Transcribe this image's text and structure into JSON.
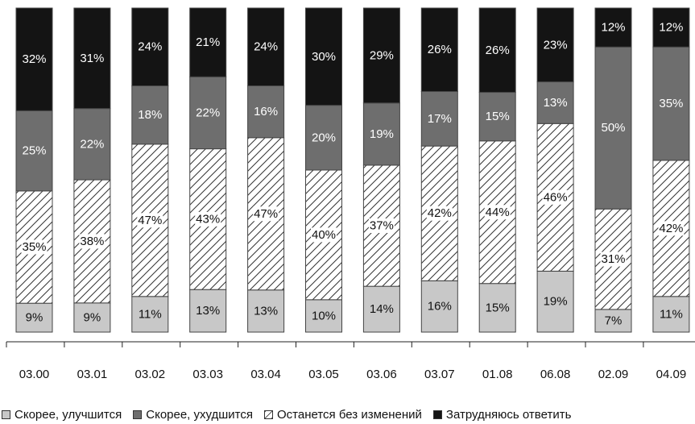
{
  "chart_data": {
    "type": "bar",
    "stacked": true,
    "categories": [
      "03.00",
      "03.01",
      "03.02",
      "03.03",
      "03.04",
      "03.05",
      "03.06",
      "03.07",
      "01.08",
      "06.08",
      "02.09",
      "04.09"
    ],
    "series": [
      {
        "name": "Скорее, улучшится",
        "values": [
          9,
          9,
          11,
          13,
          13,
          10,
          14,
          16,
          15,
          19,
          7,
          11
        ],
        "labels": [
          "9%",
          "9%",
          "11%",
          "13%",
          "13%",
          "10%",
          "14%",
          "16%",
          "15%",
          "19%",
          "7%",
          "11%"
        ],
        "color": "#c8c8c8"
      },
      {
        "name": "Останется без изменений",
        "values": [
          35,
          38,
          47,
          43,
          47,
          40,
          37,
          42,
          44,
          46,
          31,
          42
        ],
        "labels": [
          "35%",
          "38%",
          "47%",
          "43%",
          "47%",
          "40%",
          "37%",
          "42%",
          "44%",
          "46%",
          "31%",
          "42%"
        ],
        "color": "hatch"
      },
      {
        "name": "Скорее, ухудшится",
        "values": [
          25,
          22,
          18,
          22,
          16,
          20,
          19,
          17,
          15,
          13,
          50,
          35
        ],
        "labels": [
          "25%",
          "22%",
          "18%",
          "22%",
          "16%",
          "20%",
          "19%",
          "17%",
          "15%",
          "13%",
          "50%",
          "35%"
        ],
        "color": "#6e6e6e"
      },
      {
        "name": "Затрудняюсь ответить",
        "values": [
          32,
          31,
          24,
          21,
          24,
          30,
          29,
          26,
          26,
          23,
          12,
          12
        ],
        "labels": [
          "32%",
          "31%",
          "24%",
          "21%",
          "24%",
          "30%",
          "29%",
          "26%",
          "26%",
          "23%",
          "12%",
          "12%"
        ],
        "color": "#141414"
      }
    ],
    "legend": [
      {
        "label": "Скорее, улучшится",
        "color": "#c8c8c8",
        "icon": "light-gray-square-icon"
      },
      {
        "label": "Скорее, ухудшится",
        "color": "#6e6e6e",
        "icon": "dark-gray-square-icon"
      },
      {
        "label": "Останется без изменений",
        "color": "hatch",
        "icon": "hatched-square-icon"
      },
      {
        "label": "Затрудняюсь ответить",
        "color": "#141414",
        "icon": "black-square-icon"
      }
    ],
    "legend_position": "bottom",
    "ylim": [
      0,
      100
    ],
    "grid": false
  }
}
